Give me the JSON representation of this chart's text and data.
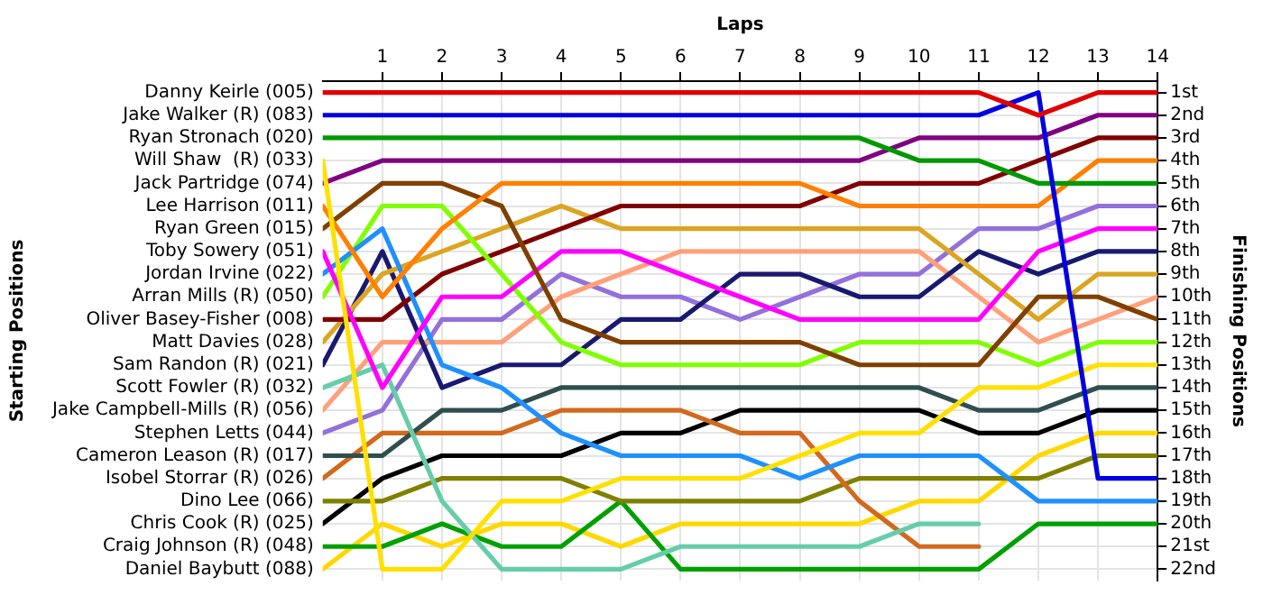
{
  "chart_data": {
    "type": "line",
    "xlabel": "Laps",
    "ylabel": "Finishing Positions",
    "x": [
      0,
      1,
      2,
      3,
      4,
      5,
      6,
      7,
      8,
      9,
      10,
      11,
      12,
      13,
      14
    ],
    "xlim": [
      0,
      14
    ],
    "xticks": [
      1,
      2,
      3,
      4,
      5,
      6,
      7,
      8,
      9,
      10,
      11,
      12,
      13,
      14
    ],
    "ylim": [
      22.5,
      0.5
    ],
    "yticks": [
      {
        "value": 1,
        "label": "1st"
      },
      {
        "value": 2,
        "label": "2nd"
      },
      {
        "value": 3,
        "label": "3rd"
      },
      {
        "value": 4,
        "label": "4th"
      },
      {
        "value": 5,
        "label": "5th"
      },
      {
        "value": 6,
        "label": "6th"
      },
      {
        "value": 7,
        "label": "7th"
      },
      {
        "value": 8,
        "label": "8th"
      },
      {
        "value": 9,
        "label": "9th"
      },
      {
        "value": 10,
        "label": "10th"
      },
      {
        "value": 11,
        "label": "11th"
      },
      {
        "value": 12,
        "label": "12th"
      },
      {
        "value": 13,
        "label": "13th"
      },
      {
        "value": 14,
        "label": "14th"
      },
      {
        "value": 15,
        "label": "15th"
      },
      {
        "value": 16,
        "label": "16th"
      },
      {
        "value": 17,
        "label": "17th"
      },
      {
        "value": 18,
        "label": "18th"
      },
      {
        "value": 19,
        "label": "19th"
      },
      {
        "value": 20,
        "label": "20th"
      },
      {
        "value": 21,
        "label": "21st"
      },
      {
        "value": 22,
        "label": "22nd"
      }
    ],
    "annotations": [
      "Starting Positions"
    ],
    "grid": true,
    "legend": "left",
    "marker": "none",
    "line_style": "solid",
    "series": [
      {
        "name": "Danny Keirle (005)",
        "color": "#e00000",
        "values": [
          1,
          1,
          1,
          1,
          1,
          1,
          1,
          1,
          1,
          1,
          1,
          1,
          2,
          1,
          1
        ]
      },
      {
        "name": "Jake Walker (R) (083)",
        "color": "#0000e0",
        "values": [
          2,
          2,
          2,
          2,
          2,
          2,
          2,
          2,
          2,
          2,
          2,
          2,
          1,
          18,
          18
        ]
      },
      {
        "name": "Ryan Stronach (020)",
        "color": "#009900",
        "values": [
          3,
          3,
          3,
          3,
          3,
          3,
          3,
          3,
          3,
          3,
          4,
          4,
          5,
          5,
          5
        ]
      },
      {
        "name": "Will Shaw  (R) (033)",
        "color": "#ffe000",
        "values": [
          4,
          22,
          22,
          19,
          19,
          18,
          18,
          18,
          17,
          16,
          16,
          14,
          14,
          13,
          13
        ]
      },
      {
        "name": "Jack Partridge (074)",
        "color": "#800080",
        "values": [
          5,
          4,
          4,
          4,
          4,
          4,
          4,
          4,
          4,
          4,
          3,
          3,
          3,
          2,
          2
        ]
      },
      {
        "name": "Lee Harrison (011)",
        "color": "#ff8000",
        "values": [
          6,
          10,
          7,
          5,
          5,
          5,
          5,
          5,
          5,
          6,
          6,
          6,
          6,
          4,
          4
        ]
      },
      {
        "name": "Ryan Green (015)",
        "color": "#804000",
        "values": [
          7,
          5,
          5,
          6,
          11,
          12,
          12,
          12,
          12,
          13,
          13,
          13,
          10,
          10,
          11
        ]
      },
      {
        "name": "Toby Sowery (051)",
        "color": "#ff00ff",
        "values": [
          8,
          14,
          10,
          10,
          8,
          8,
          9,
          10,
          11,
          11,
          11,
          11,
          8,
          7,
          7
        ]
      },
      {
        "name": "Jordan Irvine (022)",
        "color": "#1e90ff",
        "values": [
          9,
          7,
          13,
          14,
          16,
          17,
          17,
          17,
          18,
          17,
          17,
          17,
          19,
          19,
          19
        ]
      },
      {
        "name": "Arran Mills (R) (050)",
        "color": "#80ff00",
        "values": [
          10,
          6,
          6,
          9,
          12,
          13,
          13,
          13,
          13,
          12,
          12,
          12,
          13,
          12,
          12
        ]
      },
      {
        "name": "Oliver Basey-Fisher (008)",
        "color": "#800000",
        "values": [
          11,
          11,
          9,
          8,
          7,
          6,
          6,
          6,
          6,
          5,
          5,
          5,
          4,
          3,
          3
        ]
      },
      {
        "name": "Matt Davies (028)",
        "color": "#daa520",
        "values": [
          12,
          9,
          8,
          7,
          6,
          7,
          7,
          7,
          7,
          7,
          7,
          9,
          11,
          9,
          9
        ]
      },
      {
        "name": "Sam Randon (R) (021)",
        "color": "#191970",
        "values": [
          13,
          8,
          14,
          13,
          13,
          11,
          11,
          9,
          9,
          10,
          10,
          8,
          9,
          8,
          8
        ]
      },
      {
        "name": "Scott Fowler (R) (032)",
        "color": "#66cdaa",
        "values": [
          14,
          13,
          19,
          22,
          22,
          22,
          21,
          21,
          21,
          21,
          20,
          20,
          null,
          null,
          null
        ]
      },
      {
        "name": "Jake Campbell-Mills (R) (056)",
        "color": "#ffa07a",
        "values": [
          15,
          12,
          12,
          12,
          10,
          9,
          8,
          8,
          8,
          8,
          8,
          10,
          12,
          11,
          10
        ]
      },
      {
        "name": "Stephen Letts (044)",
        "color": "#9370db",
        "values": [
          16,
          15,
          11,
          11,
          9,
          10,
          10,
          11,
          10,
          9,
          9,
          7,
          7,
          6,
          6
        ]
      },
      {
        "name": "Cameron Leason (R) (017)",
        "color": "#2f4f4f",
        "values": [
          17,
          17,
          15,
          15,
          14,
          14,
          14,
          14,
          14,
          14,
          14,
          15,
          15,
          14,
          14
        ]
      },
      {
        "name": "Isobel Storrar (R) (026)",
        "color": "#d2691e",
        "values": [
          18,
          16,
          16,
          16,
          15,
          15,
          15,
          16,
          16,
          19,
          21,
          21,
          null,
          null,
          null
        ]
      },
      {
        "name": "Dino Lee (066)",
        "color": "#808000",
        "values": [
          19,
          19,
          18,
          18,
          18,
          19,
          19,
          19,
          19,
          18,
          18,
          18,
          18,
          17,
          17
        ]
      },
      {
        "name": "Chris Cook (R) (025)",
        "color": "#000000",
        "values": [
          20,
          18,
          17,
          17,
          17,
          16,
          16,
          15,
          15,
          15,
          15,
          16,
          16,
          15,
          15
        ]
      },
      {
        "name": "Craig Johnson (R) (048)",
        "color": "#00a000",
        "values": [
          21,
          21,
          20,
          21,
          21,
          19,
          22,
          22,
          22,
          22,
          22,
          22,
          20,
          20,
          20
        ]
      },
      {
        "name": "Daniel Baybutt (088)",
        "color": "#ffd800",
        "values": [
          22,
          20,
          21,
          20,
          20,
          21,
          20,
          20,
          20,
          20,
          19,
          19,
          17,
          16,
          16
        ]
      }
    ]
  }
}
